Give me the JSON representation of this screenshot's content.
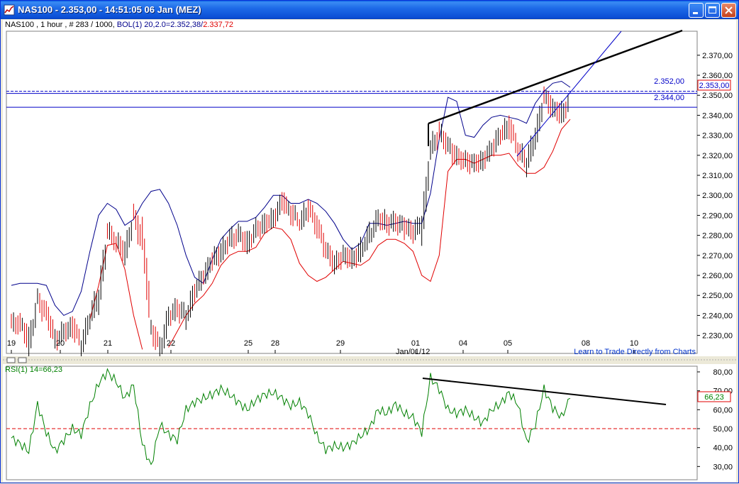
{
  "window": {
    "title": "NAS100 - 2.353,00 - 14:51:05  06 Jan (MEZ)",
    "buttons": [
      "minimize",
      "maximize",
      "close"
    ]
  },
  "price_panel": {
    "info_prefix": "NAS100 , 1 hour , # 283 / 1000, ",
    "bol_label": "BOL(1) 20,2.0=2.352,38/",
    "bol_lower_value": "2.337,72",
    "line_labels": [
      "2.352,00",
      "2.344,00"
    ],
    "current_price": "2.353,00",
    "footer_link": "Learn to Trade Directly from Charts",
    "month_label": "Jan/01/12"
  },
  "rsi_panel": {
    "label": "RSI(1) 14=66,23",
    "current_value": "66,23"
  },
  "colors": {
    "upper_band": "#00008b",
    "lower_band": "#e00000",
    "rsi_line": "#008000",
    "horizontal_line": "#0000c8",
    "trendline": "#000000",
    "selected_box": "#e00000"
  },
  "chart_data": [
    {
      "type": "line",
      "name": "price",
      "title": "NAS100 , 1 hour , # 283 / 1000, BOL(1) 20,2.0=2.352,38/2.337,72",
      "x_tick_labels": [
        "19",
        "20",
        "21",
        "22",
        "25",
        "28",
        "29",
        "01",
        "04",
        "05",
        "08",
        "10"
      ],
      "y_tick_labels": [
        "2.230,00",
        "2.240,00",
        "2.250,00",
        "2.260,00",
        "2.270,00",
        "2.280,00",
        "2.290,00",
        "2.300,00",
        "2.310,00",
        "2.320,00",
        "2.330,00",
        "2.340,00",
        "2.350,00",
        "2.360,00",
        "2.370,00"
      ],
      "ylim": [
        2221,
        2382
      ],
      "y_ticks": [
        2230,
        2240,
        2250,
        2260,
        2270,
        2280,
        2290,
        2300,
        2310,
        2320,
        2330,
        2340,
        2350,
        2360,
        2370
      ],
      "horizontal_lines": [
        2352,
        2344
      ],
      "current_price": 2353,
      "series": [
        {
          "name": "BOL(1) upper",
          "values": [
            2255,
            2256,
            2256,
            2256,
            2255,
            2245,
            2240,
            2242,
            2252,
            2272,
            2290,
            2296,
            2293,
            2285,
            2288,
            2296,
            2302,
            2303,
            2296,
            2285,
            2270,
            2259,
            2256,
            2268,
            2278,
            2283,
            2287,
            2287,
            2289,
            2294,
            2300,
            2300,
            2296,
            2296,
            2298,
            2296,
            2292,
            2286,
            2278,
            2273,
            2276,
            2286,
            2286,
            2285,
            2286,
            2287,
            2286,
            2286,
            2301,
            2328,
            2349,
            2347,
            2330,
            2329,
            2335,
            2339,
            2340,
            2339,
            2338,
            2336,
            2346,
            2352,
            2356,
            2357,
            2354
          ]
        },
        {
          "name": "BOL(1) lower",
          "values": [
            null,
            null,
            null,
            null,
            null,
            null,
            null,
            null,
            null,
            2238,
            2255,
            2275,
            2276,
            2263,
            2240,
            2223,
            null,
            null,
            2224,
            2232,
            2240,
            2246,
            2250,
            2256,
            2265,
            2270,
            2272,
            2272,
            2274,
            2281,
            2284,
            2283,
            2278,
            2266,
            2260,
            2257,
            2259,
            2263,
            2267,
            2266,
            2265,
            2268,
            2275,
            2278,
            2278,
            2276,
            2272,
            2260,
            2257,
            2270,
            2312,
            2318,
            2318,
            2316,
            2318,
            2320,
            2320,
            2321,
            2315,
            2311,
            2311,
            2314,
            2322,
            2333,
            2338
          ]
        },
        {
          "name": "price",
          "values": [
            2236,
            2235,
            2228,
            2247,
            2240,
            2228,
            2232,
            2234,
            2226,
            2240,
            2252,
            2282,
            2276,
            2273,
            2289,
            2275,
            2232,
            2224,
            2240,
            2243,
            2240,
            2253,
            2260,
            2268,
            2272,
            2278,
            2280,
            2276,
            2283,
            2286,
            2289,
            2297,
            2291,
            2287,
            2293,
            2284,
            2272,
            2266,
            2270,
            2268,
            2273,
            2281,
            2288,
            2286,
            2286,
            2284,
            2282,
            2287,
            2324,
            2331,
            2324,
            2319,
            2317,
            2316,
            2318,
            2324,
            2331,
            2334,
            2322,
            2317,
            2331,
            2349,
            2343,
            2341,
            2348
          ]
        }
      ]
    },
    {
      "type": "line",
      "name": "RSI(1) 14",
      "title": "RSI(1) 14=66,23",
      "y_tick_labels": [
        "30,00",
        "40,00",
        "50,00",
        "60,00",
        "70,00",
        "80,00"
      ],
      "ylim": [
        23,
        83
      ],
      "y_ticks": [
        30,
        40,
        50,
        60,
        70,
        80
      ],
      "reference_line": 50,
      "current_value": 66.23,
      "series": [
        {
          "name": "RSI",
          "values": [
            45,
            42,
            38,
            63,
            48,
            38,
            44,
            50,
            47,
            62,
            74,
            80,
            75,
            66,
            73,
            42,
            30,
            52,
            47,
            44,
            60,
            64,
            66,
            68,
            71,
            68,
            64,
            60,
            65,
            68,
            69,
            66,
            62,
            64,
            58,
            46,
            39,
            41,
            40,
            42,
            46,
            50,
            60,
            58,
            63,
            58,
            56,
            48,
            77,
            71,
            60,
            58,
            60,
            56,
            53,
            60,
            63,
            69,
            63,
            43,
            52,
            71,
            61,
            56,
            66
          ]
        }
      ]
    }
  ]
}
